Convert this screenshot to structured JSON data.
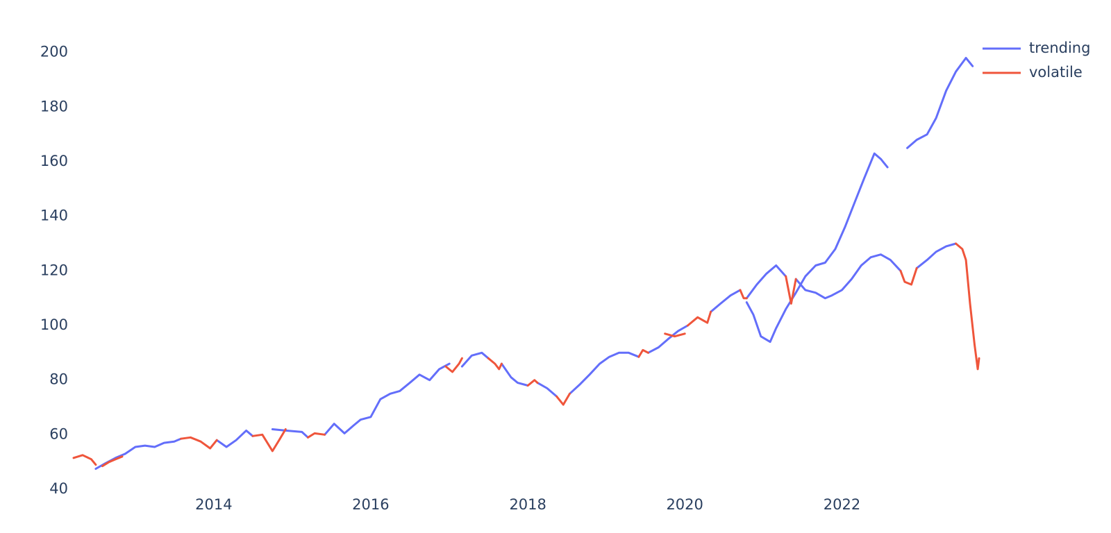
{
  "chart_data": {
    "type": "line",
    "title": "",
    "xlabel": "",
    "ylabel": "",
    "x_axis_type": "date",
    "xlim": [
      "2012-03-20",
      "2023-10-01"
    ],
    "ylim": [
      40,
      205
    ],
    "x_ticks": [
      {
        "value": "2014-01-01",
        "label": "2014"
      },
      {
        "value": "2016-01-01",
        "label": "2016"
      },
      {
        "value": "2018-01-01",
        "label": "2018"
      },
      {
        "value": "2020-01-01",
        "label": "2020"
      },
      {
        "value": "2022-01-01",
        "label": "2022"
      }
    ],
    "y_ticks": [
      40,
      60,
      80,
      100,
      120,
      140,
      160,
      180,
      200
    ],
    "grid": false,
    "legend_position": "top-right",
    "colors": {
      "trending": "#636efa",
      "volatile": "#ef553b"
    },
    "series": [
      {
        "name": "trending",
        "color": "#636efa",
        "segments": [
          [
            [
              "2012-07-01",
              47.5
            ],
            [
              "2012-08-15",
              49.5
            ],
            [
              "2012-10-01",
              51.5
            ],
            [
              "2012-11-15",
              53
            ]
          ],
          [
            [
              "2012-11-15",
              53
            ],
            [
              "2013-01-01",
              55.5
            ],
            [
              "2013-02-15",
              56
            ],
            [
              "2013-04-01",
              55.5
            ],
            [
              "2013-05-15",
              57
            ],
            [
              "2013-07-01",
              57.5
            ],
            [
              "2013-08-01",
              58.5
            ]
          ],
          [
            [
              "2014-01-15",
              58
            ],
            [
              "2014-03-01",
              55.5
            ],
            [
              "2014-04-15",
              58
            ],
            [
              "2014-06-01",
              61.5
            ],
            [
              "2014-07-01",
              59.5
            ]
          ],
          [
            [
              "2014-10-01",
              62
            ],
            [
              "2014-12-01",
              61.5
            ],
            [
              "2015-02-15",
              61
            ],
            [
              "2015-03-15",
              59
            ]
          ],
          [
            [
              "2015-06-01",
              60
            ],
            [
              "2015-07-15",
              64
            ],
            [
              "2015-09-01",
              60.5
            ],
            [
              "2015-10-15",
              63.5
            ],
            [
              "2015-11-15",
              65.5
            ],
            [
              "2016-01-01",
              66.5
            ],
            [
              "2016-02-15",
              73
            ],
            [
              "2016-04-01",
              75
            ],
            [
              "2016-05-15",
              76
            ],
            [
              "2016-07-01",
              79
            ],
            [
              "2016-08-15",
              82
            ],
            [
              "2016-10-01",
              80
            ],
            [
              "2016-11-15",
              84
            ],
            [
              "2017-01-01",
              86
            ]
          ],
          [
            [
              "2017-03-01",
              85
            ],
            [
              "2017-04-15",
              89
            ],
            [
              "2017-06-01",
              90
            ],
            [
              "2017-07-01",
              88
            ]
          ],
          [
            [
              "2017-09-01",
              86
            ],
            [
              "2017-10-15",
              81
            ],
            [
              "2017-11-15",
              79
            ],
            [
              "2018-01-01",
              78
            ]
          ],
          [
            [
              "2018-02-15",
              79
            ],
            [
              "2018-04-01",
              77
            ],
            [
              "2018-05-15",
              74
            ]
          ],
          [
            [
              "2018-07-15",
              75
            ],
            [
              "2018-09-01",
              78.5
            ],
            [
              "2018-10-15",
              82
            ],
            [
              "2018-12-01",
              86
            ],
            [
              "2019-01-15",
              88.5
            ],
            [
              "2019-03-01",
              90
            ],
            [
              "2019-04-15",
              90
            ],
            [
              "2019-06-01",
              88.5
            ]
          ],
          [
            [
              "2019-07-15",
              90
            ],
            [
              "2019-09-01",
              92
            ],
            [
              "2019-10-15",
              95
            ],
            [
              "2019-12-01",
              98
            ],
            [
              "2020-01-15",
              100
            ]
          ],
          [
            [
              "2020-05-01",
              105
            ],
            [
              "2020-06-15",
              108
            ],
            [
              "2020-08-01",
              111
            ],
            [
              "2020-09-15",
              113
            ]
          ],
          [
            [
              "2020-10-15",
              110
            ],
            [
              "2020-12-01",
              115
            ],
            [
              "2021-01-15",
              119
            ],
            [
              "2021-03-01",
              122
            ],
            [
              "2021-04-15",
              118
            ]
          ],
          [
            [
              "2021-06-01",
              117
            ],
            [
              "2021-07-15",
              113
            ],
            [
              "2021-09-01",
              112
            ],
            [
              "2021-10-15",
              110
            ],
            [
              "2021-11-15",
              111
            ],
            [
              "2022-01-01",
              113
            ],
            [
              "2022-02-15",
              117
            ],
            [
              "2022-04-01",
              122
            ],
            [
              "2022-05-15",
              125
            ],
            [
              "2022-07-01",
              126
            ],
            [
              "2022-08-15",
              124
            ],
            [
              "2022-10-01",
              120
            ]
          ],
          [
            [
              "2022-12-15",
              121
            ],
            [
              "2023-02-01",
              124
            ],
            [
              "2023-03-15",
              127
            ],
            [
              "2023-05-01",
              129
            ],
            [
              "2023-06-15",
              130
            ]
          ],
          [
            [
              "2020-10-15",
              108.5
            ],
            [
              "2020-11-15",
              104
            ],
            [
              "2020-12-20",
              96
            ],
            [
              "2021-02-01",
              94
            ],
            [
              "2021-03-01",
              99
            ],
            [
              "2021-04-15",
              106
            ],
            [
              "2021-06-01",
              112
            ],
            [
              "2021-07-15",
              118
            ],
            [
              "2021-09-01",
              122
            ],
            [
              "2021-10-15",
              123
            ],
            [
              "2021-12-01",
              128
            ],
            [
              "2022-01-15",
              136
            ],
            [
              "2022-03-01",
              145
            ],
            [
              "2022-04-15",
              154
            ],
            [
              "2022-06-01",
              163
            ],
            [
              "2022-07-01",
              161
            ],
            [
              "2022-08-01",
              158
            ]
          ],
          [
            [
              "2022-11-01",
              165
            ],
            [
              "2022-12-15",
              168
            ],
            [
              "2023-02-01",
              170
            ],
            [
              "2023-03-15",
              176
            ],
            [
              "2023-05-01",
              186
            ],
            [
              "2023-06-15",
              193
            ],
            [
              "2023-08-01",
              198
            ],
            [
              "2023-09-01",
              195
            ]
          ]
        ]
      },
      {
        "name": "volatile",
        "color": "#ef553b",
        "segments": [
          [
            [
              "2012-03-20",
              51.5
            ],
            [
              "2012-05-01",
              52.5
            ],
            [
              "2012-06-10",
              51
            ],
            [
              "2012-07-01",
              49
            ]
          ],
          [
            [
              "2012-08-01",
              48.5
            ],
            [
              "2012-09-01",
              50
            ],
            [
              "2012-10-01",
              51
            ],
            [
              "2012-11-01",
              52
            ]
          ],
          [
            [
              "2013-08-01",
              58.5
            ],
            [
              "2013-09-15",
              59
            ],
            [
              "2013-11-01",
              57.5
            ],
            [
              "2013-12-15",
              55
            ],
            [
              "2014-01-15",
              58
            ]
          ],
          [
            [
              "2014-07-01",
              59.5
            ],
            [
              "2014-08-15",
              60
            ],
            [
              "2014-10-01",
              54
            ],
            [
              "2014-11-01",
              58
            ],
            [
              "2014-12-01",
              62
            ]
          ],
          [
            [
              "2015-03-15",
              59
            ],
            [
              "2015-04-15",
              60.5
            ],
            [
              "2015-06-01",
              60
            ]
          ],
          [
            [
              "2016-12-15",
              85
            ],
            [
              "2017-01-15",
              83
            ],
            [
              "2017-02-15",
              86
            ],
            [
              "2017-03-01",
              88
            ]
          ],
          [
            [
              "2017-07-01",
              88
            ],
            [
              "2017-08-01",
              86
            ],
            [
              "2017-08-20",
              84
            ],
            [
              "2017-09-01",
              86
            ]
          ],
          [
            [
              "2018-01-01",
              78
            ],
            [
              "2018-02-01",
              80
            ],
            [
              "2018-02-15",
              79
            ]
          ],
          [
            [
              "2018-05-15",
              74
            ],
            [
              "2018-06-15",
              71
            ],
            [
              "2018-07-15",
              75
            ]
          ],
          [
            [
              "2019-06-01",
              88.5
            ],
            [
              "2019-06-20",
              91
            ],
            [
              "2019-07-15",
              90
            ]
          ],
          [
            [
              "2019-10-01",
              97
            ],
            [
              "2019-11-15",
              96
            ],
            [
              "2020-01-01",
              97
            ]
          ],
          [
            [
              "2020-01-15",
              100
            ],
            [
              "2020-03-01",
              103
            ],
            [
              "2020-04-15",
              101
            ],
            [
              "2020-05-01",
              105
            ]
          ],
          [
            [
              "2020-09-15",
              113
            ],
            [
              "2020-10-01",
              110
            ],
            [
              "2020-10-15",
              110
            ]
          ],
          [
            [
              "2021-04-15",
              118
            ],
            [
              "2021-05-10",
              108
            ],
            [
              "2021-06-01",
              117
            ]
          ],
          [
            [
              "2022-10-01",
              120
            ],
            [
              "2022-10-20",
              116
            ],
            [
              "2022-11-20",
              115
            ],
            [
              "2022-12-15",
              121
            ]
          ],
          [
            [
              "2023-06-15",
              130
            ],
            [
              "2023-07-15",
              128
            ],
            [
              "2023-08-01",
              124
            ],
            [
              "2023-08-20",
              108
            ],
            [
              "2023-09-10",
              93
            ],
            [
              "2023-09-25",
              84
            ],
            [
              "2023-10-01",
              88
            ]
          ]
        ]
      }
    ]
  }
}
